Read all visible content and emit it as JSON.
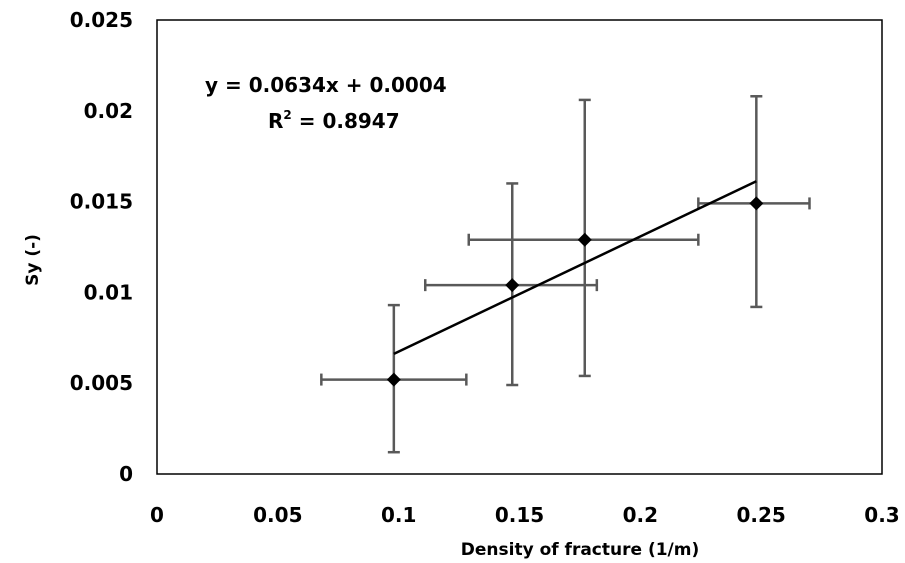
{
  "chart_data": {
    "type": "scatter",
    "xlabel": "Density of fracture (1/m)",
    "ylabel": "Sy (-)",
    "xlim": [
      0,
      0.3
    ],
    "ylim": [
      0,
      0.025
    ],
    "xticks": [
      "0",
      "0.05",
      "0.1",
      "0.15",
      "0.2",
      "0.25",
      "0.3"
    ],
    "yticks": [
      "0",
      "0.005",
      "0.01",
      "0.015",
      "0.02",
      "0.025"
    ],
    "grid": false,
    "points": [
      {
        "x": 0.098,
        "y": 0.0052,
        "x_err_low": 0.068,
        "x_err_high": 0.128,
        "y_err_low": 0.0012,
        "y_err_high": 0.0093
      },
      {
        "x": 0.147,
        "y": 0.0104,
        "x_err_low": 0.111,
        "x_err_high": 0.182,
        "y_err_low": 0.0049,
        "y_err_high": 0.016
      },
      {
        "x": 0.177,
        "y": 0.0129,
        "x_err_low": 0.129,
        "x_err_high": 0.224,
        "y_err_low": 0.0054,
        "y_err_high": 0.0206
      },
      {
        "x": 0.248,
        "y": 0.0149,
        "x_err_low": 0.224,
        "x_err_high": 0.27,
        "y_err_low": 0.0092,
        "y_err_high": 0.0208
      }
    ],
    "trendline": {
      "slope": 0.0634,
      "intercept": 0.0004,
      "x_range": [
        0.098,
        0.248
      ],
      "equation": "y = 0.0634x + 0.0004",
      "r2_label": "R",
      "r2_sup": "2",
      "r2_value": " = 0.8947"
    },
    "colors": {
      "errorbar": "#595959",
      "marker": "#000000",
      "trendline": "#000000",
      "axis": "#000000"
    }
  }
}
